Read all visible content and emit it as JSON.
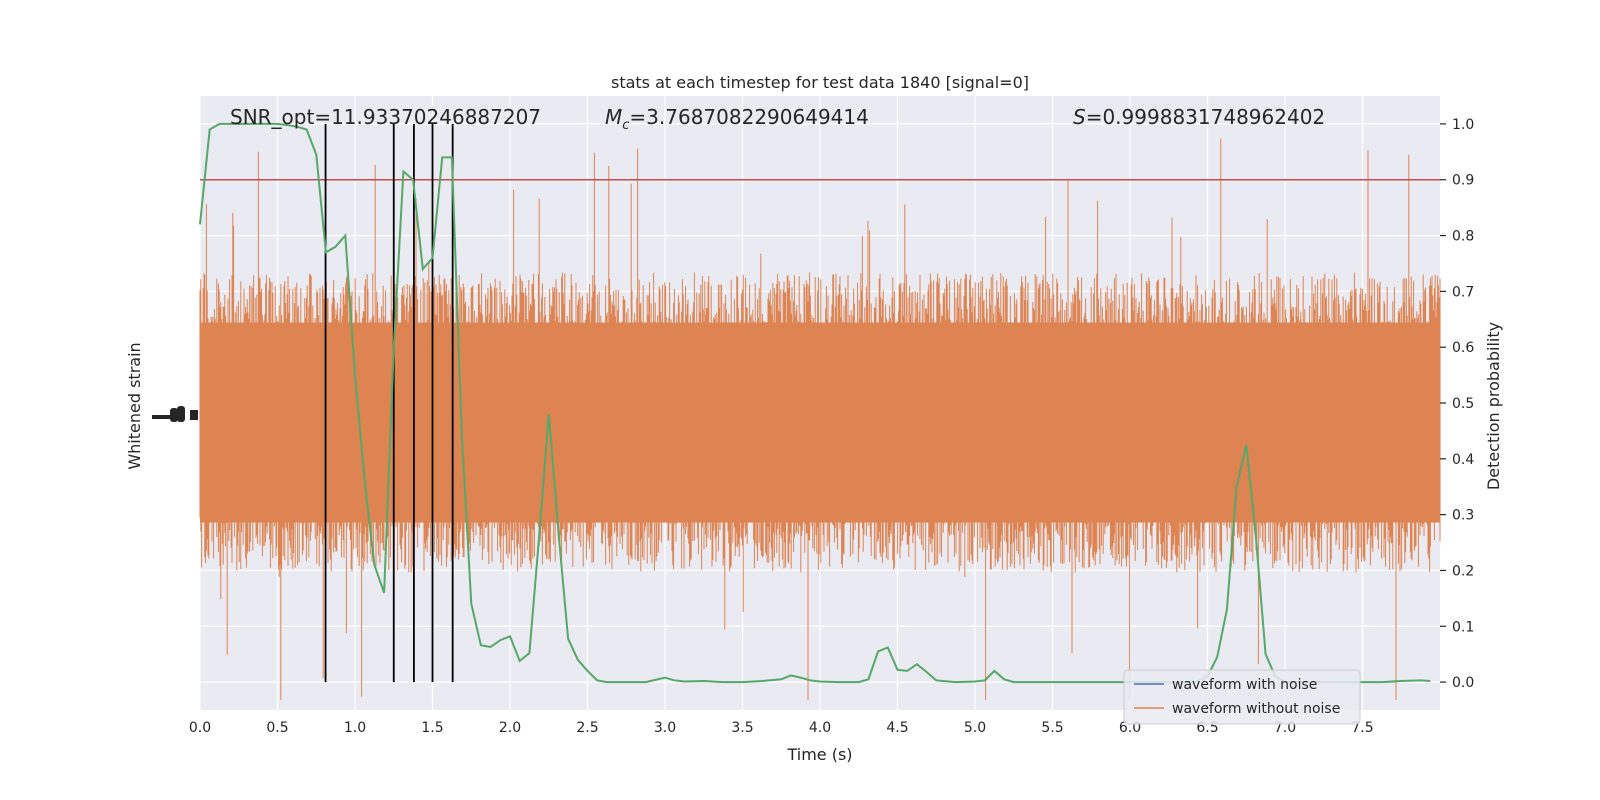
{
  "chart_data": {
    "type": "line",
    "title": "stats at each timestep for test data 1840 [signal=0]",
    "xlabel": "Time (s)",
    "ylabel_left": "Whitened strain",
    "ylabel_right": "Detection probability",
    "xlim": [
      0.0,
      8.0
    ],
    "ylim_right": [
      -0.05,
      1.05
    ],
    "x_ticks": [
      "0.0",
      "0.5",
      "1.0",
      "1.5",
      "2.0",
      "2.5",
      "3.0",
      "3.5",
      "4.0",
      "4.5",
      "5.0",
      "5.5",
      "6.0",
      "6.5",
      "7.0",
      "7.5"
    ],
    "x_tick_values": [
      0.0,
      0.5,
      1.0,
      1.5,
      2.0,
      2.5,
      3.0,
      3.5,
      4.0,
      4.5,
      5.0,
      5.5,
      6.0,
      6.5,
      7.0,
      7.5
    ],
    "y_right_ticks": [
      "0.0",
      "0.1",
      "0.2",
      "0.3",
      "0.4",
      "0.5",
      "0.6",
      "0.7",
      "0.8",
      "0.9",
      "1.0"
    ],
    "y_right_tick_values": [
      0.0,
      0.1,
      0.2,
      0.3,
      0.4,
      0.5,
      0.6,
      0.7,
      0.8,
      0.9,
      1.0
    ],
    "grid": true,
    "legend_position": "lower-right",
    "annotations": {
      "snr": "SNR_opt=11.93370246887207",
      "mc_symbol": "M",
      "mc_sub": "c",
      "mc_value": "=3.7687082290649414",
      "s_symbol": "S",
      "s_value": "=0.9998831748962402"
    },
    "threshold": 0.9,
    "vertical_markers": [
      0.81,
      1.25,
      1.38,
      1.5,
      1.63
    ],
    "series": [
      {
        "name": "waveform with noise",
        "color": "#4c72b0"
      },
      {
        "name": "waveform without noise",
        "color": "#dd8452"
      },
      {
        "color": "#55a868",
        "x": [
          0.0,
          0.0625,
          0.125,
          0.1875,
          0.25,
          0.3125,
          0.375,
          0.4375,
          0.5,
          0.5625,
          0.625,
          0.6875,
          0.75,
          0.8125,
          0.875,
          0.9375,
          1.0,
          1.0625,
          1.125,
          1.1875,
          1.25,
          1.3125,
          1.375,
          1.4375,
          1.5,
          1.5625,
          1.625,
          1.6875,
          1.75,
          1.8125,
          1.875,
          1.9375,
          2.0,
          2.0625,
          2.125,
          2.1875,
          2.25,
          2.3125,
          2.375,
          2.4375,
          2.5,
          2.5625,
          2.625,
          2.75,
          2.875,
          3.0,
          3.0625,
          3.125,
          3.25,
          3.375,
          3.5,
          3.625,
          3.75,
          3.8125,
          3.875,
          3.9375,
          4.0,
          4.125,
          4.25,
          4.3125,
          4.375,
          4.4375,
          4.5,
          4.5625,
          4.625,
          4.6875,
          4.75,
          4.875,
          5.0,
          5.0625,
          5.125,
          5.1875,
          5.25,
          5.375,
          5.5,
          5.625,
          5.75,
          5.875,
          6.0,
          6.125,
          6.25,
          6.375,
          6.4375,
          6.5,
          6.5625,
          6.625,
          6.6875,
          6.75,
          6.8125,
          6.875,
          6.9375,
          7.0,
          7.125,
          7.25,
          7.375,
          7.5,
          7.625,
          7.75,
          7.875,
          7.9375
        ],
        "values": [
          0.82,
          0.99,
          1.0,
          1.0,
          1.0,
          1.0,
          1.0,
          1.0,
          1.0,
          0.998,
          0.995,
          0.99,
          0.945,
          0.77,
          0.78,
          0.8,
          0.55,
          0.36,
          0.21,
          0.16,
          0.6,
          0.915,
          0.9,
          0.74,
          0.76,
          0.94,
          0.94,
          0.45,
          0.14,
          0.066,
          0.063,
          0.075,
          0.082,
          0.038,
          0.052,
          0.26,
          0.48,
          0.27,
          0.078,
          0.04,
          0.02,
          0.003,
          0.0,
          0.0,
          0.0,
          0.008,
          0.003,
          0.001,
          0.002,
          0.0,
          0.0,
          0.002,
          0.005,
          0.012,
          0.008,
          0.003,
          0.001,
          0.0,
          0.0,
          0.005,
          0.055,
          0.062,
          0.022,
          0.02,
          0.032,
          0.018,
          0.003,
          0.0,
          0.001,
          0.003,
          0.02,
          0.005,
          0.0,
          0.0,
          0.0,
          0.0,
          0.0,
          0.0,
          0.0,
          0.0,
          0.0,
          0.0,
          0.002,
          0.01,
          0.045,
          0.13,
          0.35,
          0.425,
          0.26,
          0.05,
          0.01,
          0.0,
          0.0,
          0.0,
          0.0,
          0.0,
          0.0,
          0.002,
          0.003,
          0.002
        ]
      }
    ]
  }
}
